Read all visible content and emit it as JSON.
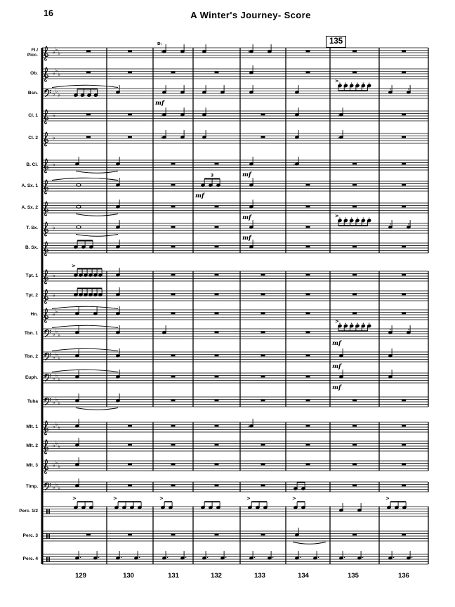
{
  "page": {
    "number": "16",
    "title": "A Winter's Journey- Score"
  },
  "rehearsal_mark": "135",
  "measure_numbers": [
    "129",
    "130",
    "131",
    "132",
    "133",
    "134",
    "135",
    "136"
  ],
  "colors": {
    "ink": "#000000",
    "paper": "#ffffff"
  },
  "score": {
    "staves": [
      {
        "label": "Fl./\nPicc.",
        "clef": "treble",
        "flats": 3,
        "events": [
          {
            "m": 2,
            "t": "tx",
            "s": "D♭"
          },
          {
            "m": 2,
            "t": "q",
            "n": 2,
            "fl": 1
          },
          {
            "m": 3,
            "t": "q",
            "n": 1
          },
          {
            "m": 4,
            "t": "q",
            "n": 2,
            "fl": 1
          }
        ]
      },
      {
        "label": "Ob.",
        "clef": "treble",
        "flats": 3,
        "events": [
          {
            "m": 4,
            "t": "q",
            "n": 1
          }
        ]
      },
      {
        "label": "Bsn.",
        "clef": "bass",
        "flats": 3,
        "events": [
          {
            "m": 0,
            "t": "bm",
            "n": 4,
            "lo": 1
          },
          {
            "m": 0,
            "t": "sA",
            "to": 1
          },
          {
            "m": 1,
            "t": "q",
            "n": 1
          },
          {
            "m": 2,
            "t": "q",
            "n": 2
          },
          {
            "m": 2,
            "t": "mf",
            "s": "mf"
          },
          {
            "m": 3,
            "t": "q",
            "n": 2
          },
          {
            "m": 4,
            "t": "q",
            "n": 1
          },
          {
            "m": 5,
            "t": "q",
            "n": 1
          },
          {
            "m": 6,
            "t": "bmD",
            "n": 6,
            "stac": 1,
            "acc": 1
          },
          {
            "m": 7,
            "t": "q",
            "n": 2,
            "stac": 1
          }
        ]
      },
      {
        "label": "Cl. 1",
        "clef": "treble",
        "flats": 1,
        "events": [
          {
            "m": 2,
            "t": "q",
            "n": 2,
            "fl": 1
          },
          {
            "m": 3,
            "t": "q",
            "n": 1
          },
          {
            "m": 5,
            "t": "q",
            "n": 1
          },
          {
            "m": 6,
            "t": "q",
            "n": 1,
            "fl": 1
          }
        ]
      },
      {
        "label": "Cl. 2",
        "clef": "treble",
        "flats": 1,
        "events": [
          {
            "m": 2,
            "t": "q",
            "n": 2,
            "fl": 1
          },
          {
            "m": 3,
            "t": "q",
            "n": 1
          },
          {
            "m": 5,
            "t": "q",
            "n": 1
          },
          {
            "m": 6,
            "t": "q",
            "n": 1,
            "fl": 1
          }
        ]
      },
      {
        "label": "B. Cl.",
        "clef": "treble",
        "flats": 1,
        "events": [
          {
            "m": 0,
            "t": "q",
            "n": 1
          },
          {
            "m": 0,
            "t": "sB",
            "to": 1
          },
          {
            "m": 1,
            "t": "q",
            "n": 1
          },
          {
            "m": 4,
            "t": "q",
            "n": 1
          },
          {
            "m": 4,
            "t": "mf",
            "s": "mf"
          },
          {
            "m": 5,
            "t": "q",
            "n": 1,
            "fl": 1
          }
        ]
      },
      {
        "label": "A. Sx. 1",
        "clef": "treble",
        "flats": 0,
        "events": [
          {
            "m": 0,
            "t": "w"
          },
          {
            "m": 0,
            "t": "sA",
            "to": 1
          },
          {
            "m": 1,
            "t": "q",
            "n": 1
          },
          {
            "m": 3,
            "t": "bm",
            "n": 3,
            "t3": 1,
            "s3": "3"
          },
          {
            "m": 3,
            "t": "mf",
            "s": "mf"
          },
          {
            "m": 4,
            "t": "q",
            "n": 1
          }
        ]
      },
      {
        "label": "A. Sx. 2",
        "clef": "treble",
        "flats": 0,
        "events": [
          {
            "m": 0,
            "t": "w"
          },
          {
            "m": 0,
            "t": "sB",
            "to": 1
          },
          {
            "m": 1,
            "t": "q",
            "n": 1
          },
          {
            "m": 4,
            "t": "q",
            "n": 1
          },
          {
            "m": 4,
            "t": "mf",
            "s": "mf"
          }
        ]
      },
      {
        "label": "T. Sx.",
        "clef": "treble",
        "flats": 1,
        "events": [
          {
            "m": 0,
            "t": "w"
          },
          {
            "m": 0,
            "t": "sB",
            "to": 1
          },
          {
            "m": 1,
            "t": "q",
            "n": 1
          },
          {
            "m": 4,
            "t": "q",
            "n": 1
          },
          {
            "m": 4,
            "t": "mf",
            "s": "mf"
          },
          {
            "m": 6,
            "t": "bmD",
            "n": 6,
            "stac": 1,
            "acc": 1
          },
          {
            "m": 7,
            "t": "q",
            "n": 2,
            "stac": 1
          }
        ]
      },
      {
        "label": "B. Sx.",
        "clef": "treble",
        "flats": 0,
        "events": [
          {
            "m": 0,
            "t": "bm",
            "n": 3
          },
          {
            "m": 1,
            "t": "q",
            "n": 1
          },
          {
            "m": 4,
            "t": "q",
            "n": 1
          }
        ]
      },
      {
        "label": "Tpt. 1",
        "clef": "treble",
        "flats": 1,
        "events": [
          {
            "m": 0,
            "t": "bm",
            "n": 6,
            "acc": 1
          },
          {
            "m": 1,
            "t": "q",
            "n": 1
          }
        ]
      },
      {
        "label": "Tpt. 2",
        "clef": "treble",
        "flats": 1,
        "events": [
          {
            "m": 0,
            "t": "bm",
            "n": 6
          },
          {
            "m": 1,
            "t": "q",
            "n": 1
          }
        ]
      },
      {
        "label": "Hn.",
        "clef": "treble",
        "flats": 2,
        "events": [
          {
            "m": 0,
            "t": "q",
            "n": 2
          },
          {
            "m": 0,
            "t": "sA",
            "to": 1
          },
          {
            "m": 1,
            "t": "q",
            "n": 1
          }
        ]
      },
      {
        "label": "Tbn. 1",
        "clef": "bass",
        "flats": 3,
        "events": [
          {
            "m": 0,
            "t": "q",
            "n": 1
          },
          {
            "m": 0,
            "t": "sA",
            "to": 1
          },
          {
            "m": 1,
            "t": "q",
            "n": 1
          },
          {
            "m": 2,
            "t": "q",
            "n": 1
          },
          {
            "m": 6,
            "t": "bmD",
            "n": 6,
            "stac": 1,
            "acc": 1
          },
          {
            "m": 6,
            "t": "mf",
            "s": "mf"
          },
          {
            "m": 7,
            "t": "q",
            "n": 2,
            "stac": 1
          }
        ]
      },
      {
        "label": "Tbn. 2",
        "clef": "bass",
        "flats": 3,
        "events": [
          {
            "m": 0,
            "t": "q",
            "n": 1
          },
          {
            "m": 0,
            "t": "sA",
            "to": 1
          },
          {
            "m": 1,
            "t": "q",
            "n": 1
          },
          {
            "m": 6,
            "t": "q",
            "n": 1
          },
          {
            "m": 6,
            "t": "mf",
            "s": "mf"
          },
          {
            "m": 7,
            "t": "q",
            "n": 1
          }
        ]
      },
      {
        "label": "Euph.",
        "clef": "bass",
        "flats": 3,
        "events": [
          {
            "m": 0,
            "t": "q",
            "n": 1
          },
          {
            "m": 0,
            "t": "sA",
            "to": 1
          },
          {
            "m": 1,
            "t": "q",
            "n": 1
          },
          {
            "m": 6,
            "t": "q",
            "n": 1
          },
          {
            "m": 6,
            "t": "mf",
            "s": "mf"
          },
          {
            "m": 7,
            "t": "q",
            "n": 1
          }
        ]
      },
      {
        "label": "Tuba",
        "clef": "bass",
        "flats": 3,
        "events": [
          {
            "m": 0,
            "t": "q",
            "n": 1
          },
          {
            "m": 0,
            "t": "sB",
            "to": 1
          },
          {
            "m": 1,
            "t": "q",
            "n": 1
          }
        ]
      },
      {
        "label": "Mlt. 1",
        "clef": "treble",
        "flats": 3,
        "events": [
          {
            "m": 0,
            "t": "q",
            "n": 1
          },
          {
            "m": 4,
            "t": "q",
            "n": 1,
            "fl": 1
          }
        ]
      },
      {
        "label": "Mlt. 2",
        "clef": "treble",
        "flats": 3,
        "events": [
          {
            "m": 0,
            "t": "q",
            "n": 1
          }
        ]
      },
      {
        "label": "Mlt. 3",
        "clef": "treble",
        "flats": 3,
        "events": [
          {
            "m": 0,
            "t": "q",
            "n": 1
          }
        ]
      },
      {
        "label": "Timp.",
        "clef": "bass",
        "flats": 3,
        "events": [
          {
            "m": 0,
            "t": "q",
            "n": 1
          },
          {
            "m": 5,
            "t": "bm",
            "n": 2,
            "lo": 1
          }
        ]
      },
      {
        "label": "Perc. 1/2",
        "clef": "perc",
        "flats": 0,
        "events": [
          {
            "m": 0,
            "t": "bmU",
            "n": 3,
            "acc": 1
          },
          {
            "m": 1,
            "t": "bmU",
            "n": 4,
            "acc": 1
          },
          {
            "m": 2,
            "t": "bmU",
            "n": 2,
            "acc": 1
          },
          {
            "m": 3,
            "t": "bmU",
            "n": 3
          },
          {
            "m": 4,
            "t": "bmU",
            "n": 3,
            "acc": 1
          },
          {
            "m": 5,
            "t": "bmU",
            "n": 2,
            "acc": 1
          },
          {
            "m": 6,
            "t": "q",
            "n": 2
          },
          {
            "m": 7,
            "t": "bmU",
            "n": 3,
            "acc": 1
          }
        ]
      },
      {
        "label": "Perc. 3",
        "clef": "perc",
        "flats": 0,
        "events": [
          {
            "m": 5,
            "t": "q",
            "n": 1
          },
          {
            "m": 5,
            "t": "sB",
            "to": 5
          }
        ]
      },
      {
        "label": "Perc. 4",
        "clef": "perc",
        "flats": 0,
        "events": [
          {
            "m": 0,
            "t": "q",
            "n": 2,
            "dt": 1
          },
          {
            "m": 1,
            "t": "q",
            "n": 2,
            "dt": 1
          },
          {
            "m": 2,
            "t": "q",
            "n": 2,
            "dt": 1
          },
          {
            "m": 3,
            "t": "q",
            "n": 2,
            "dt": 1
          },
          {
            "m": 4,
            "t": "q",
            "n": 2,
            "dt": 1
          },
          {
            "m": 5,
            "t": "q",
            "n": 2,
            "dt": 1
          },
          {
            "m": 6,
            "t": "q",
            "n": 2,
            "dt": 1
          },
          {
            "m": 7,
            "t": "q",
            "n": 2,
            "dt": 1
          }
        ]
      }
    ]
  }
}
